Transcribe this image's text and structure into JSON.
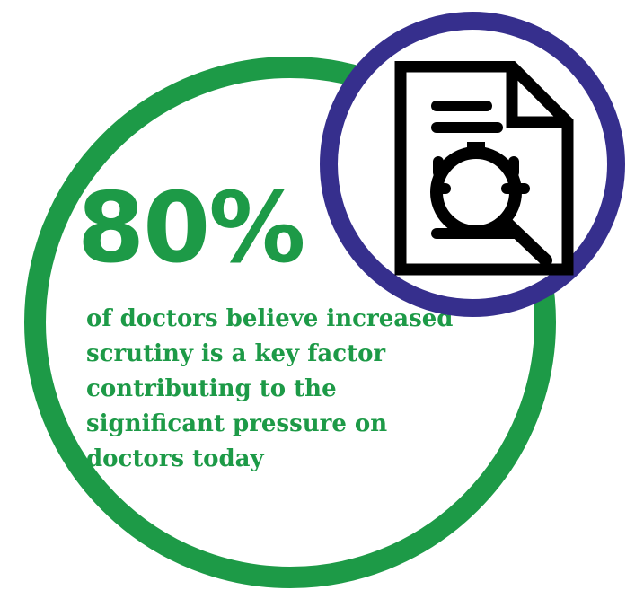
{
  "stat": {
    "value": "80%",
    "caption": "of doctors believe increased scrutiny is a key factor contributing to the significant pressure on doctors today"
  },
  "icon": {
    "name": "document-search-icon"
  },
  "colors": {
    "green": "#1d9a47",
    "purple": "#362f8d",
    "black": "#000000",
    "background": "#ffffff"
  }
}
